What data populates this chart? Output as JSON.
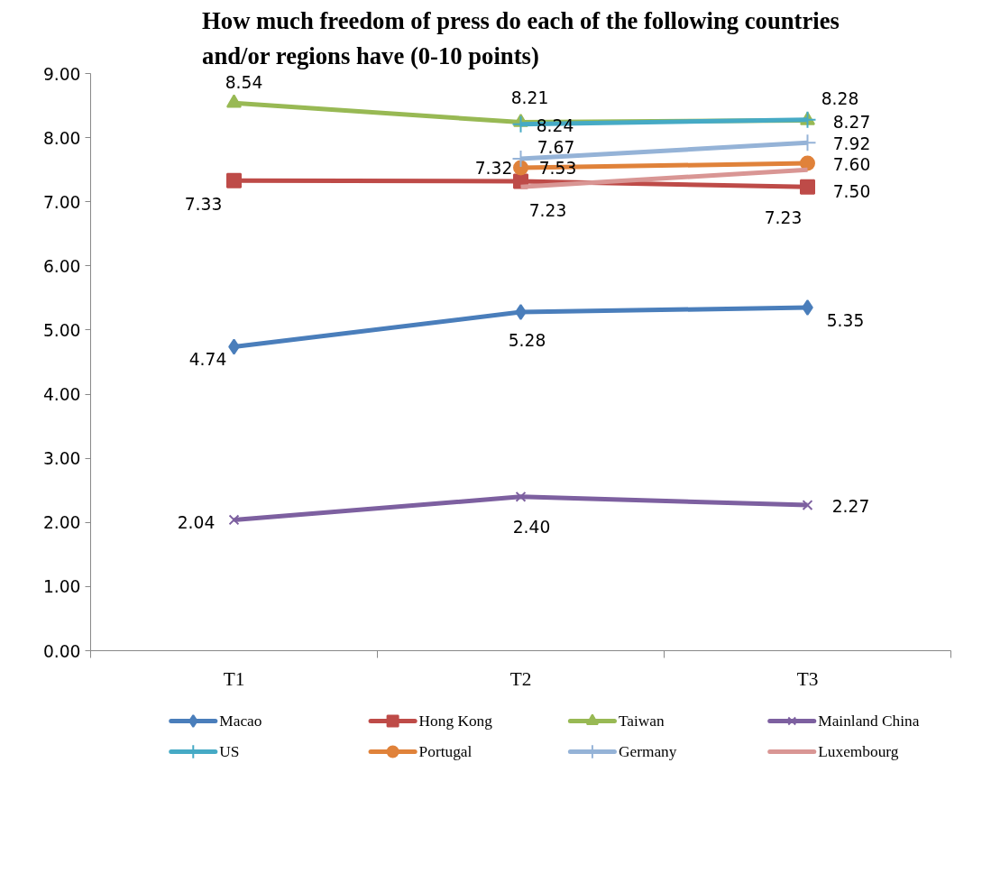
{
  "chart_data": {
    "type": "line",
    "title": "How much freedom of press do each of the following countries\nand/or regions have (0-10 points)",
    "categories": [
      "T1",
      "T2",
      "T3"
    ],
    "series": [
      {
        "name": "Macao",
        "color": "#4a7ebb",
        "marker": "diamond",
        "values": [
          4.74,
          5.28,
          5.35
        ],
        "value_labels": [
          "4.74",
          "5.28",
          "5.35"
        ]
      },
      {
        "name": "Hong Kong",
        "color": "#be4b48",
        "marker": "square",
        "values": [
          7.33,
          7.32,
          7.23
        ],
        "value_labels": [
          "7.33",
          "7.32",
          "7.23"
        ]
      },
      {
        "name": "Taiwan",
        "color": "#98b954",
        "marker": "triangle",
        "values": [
          8.54,
          8.24,
          8.27
        ],
        "value_labels": [
          "8.54",
          "8.24",
          "8.27"
        ]
      },
      {
        "name": "Mainland China",
        "color": "#7d60a0",
        "marker": "x",
        "values": [
          2.04,
          2.4,
          2.27
        ],
        "value_labels": [
          "2.04",
          "2.40",
          "2.27"
        ]
      },
      {
        "name": "US",
        "color": "#46aac5",
        "marker": "cross",
        "values": [
          null,
          8.21,
          8.28
        ],
        "value_labels": [
          null,
          "8.21",
          "8.28"
        ]
      },
      {
        "name": "Portugal",
        "color": "#e0823a",
        "marker": "circle",
        "values": [
          null,
          7.53,
          7.6
        ],
        "value_labels": [
          null,
          "7.53",
          "7.60"
        ]
      },
      {
        "name": "Germany",
        "color": "#95b3d7",
        "marker": "cross",
        "values": [
          null,
          7.67,
          7.92
        ],
        "value_labels": [
          null,
          "7.67",
          "7.92"
        ]
      },
      {
        "name": "Luxembourg",
        "color": "#d99694",
        "marker": "none",
        "values": [
          null,
          7.23,
          7.5
        ],
        "value_labels": [
          null,
          "7.23",
          "7.50"
        ]
      }
    ],
    "ylim": [
      0,
      9
    ],
    "yticks": [
      {
        "value": 0,
        "label": "0.00"
      },
      {
        "value": 1,
        "label": "1.00"
      },
      {
        "value": 2,
        "label": "2.00"
      },
      {
        "value": 3,
        "label": "3.00"
      },
      {
        "value": 4,
        "label": "4.00"
      },
      {
        "value": 5,
        "label": "5.00"
      },
      {
        "value": 6,
        "label": "6.00"
      },
      {
        "value": 7,
        "label": "7.00"
      },
      {
        "value": 8,
        "label": "8.00"
      },
      {
        "value": 9,
        "label": "9.00"
      }
    ],
    "legend": "bottom",
    "line_style": "solid"
  }
}
